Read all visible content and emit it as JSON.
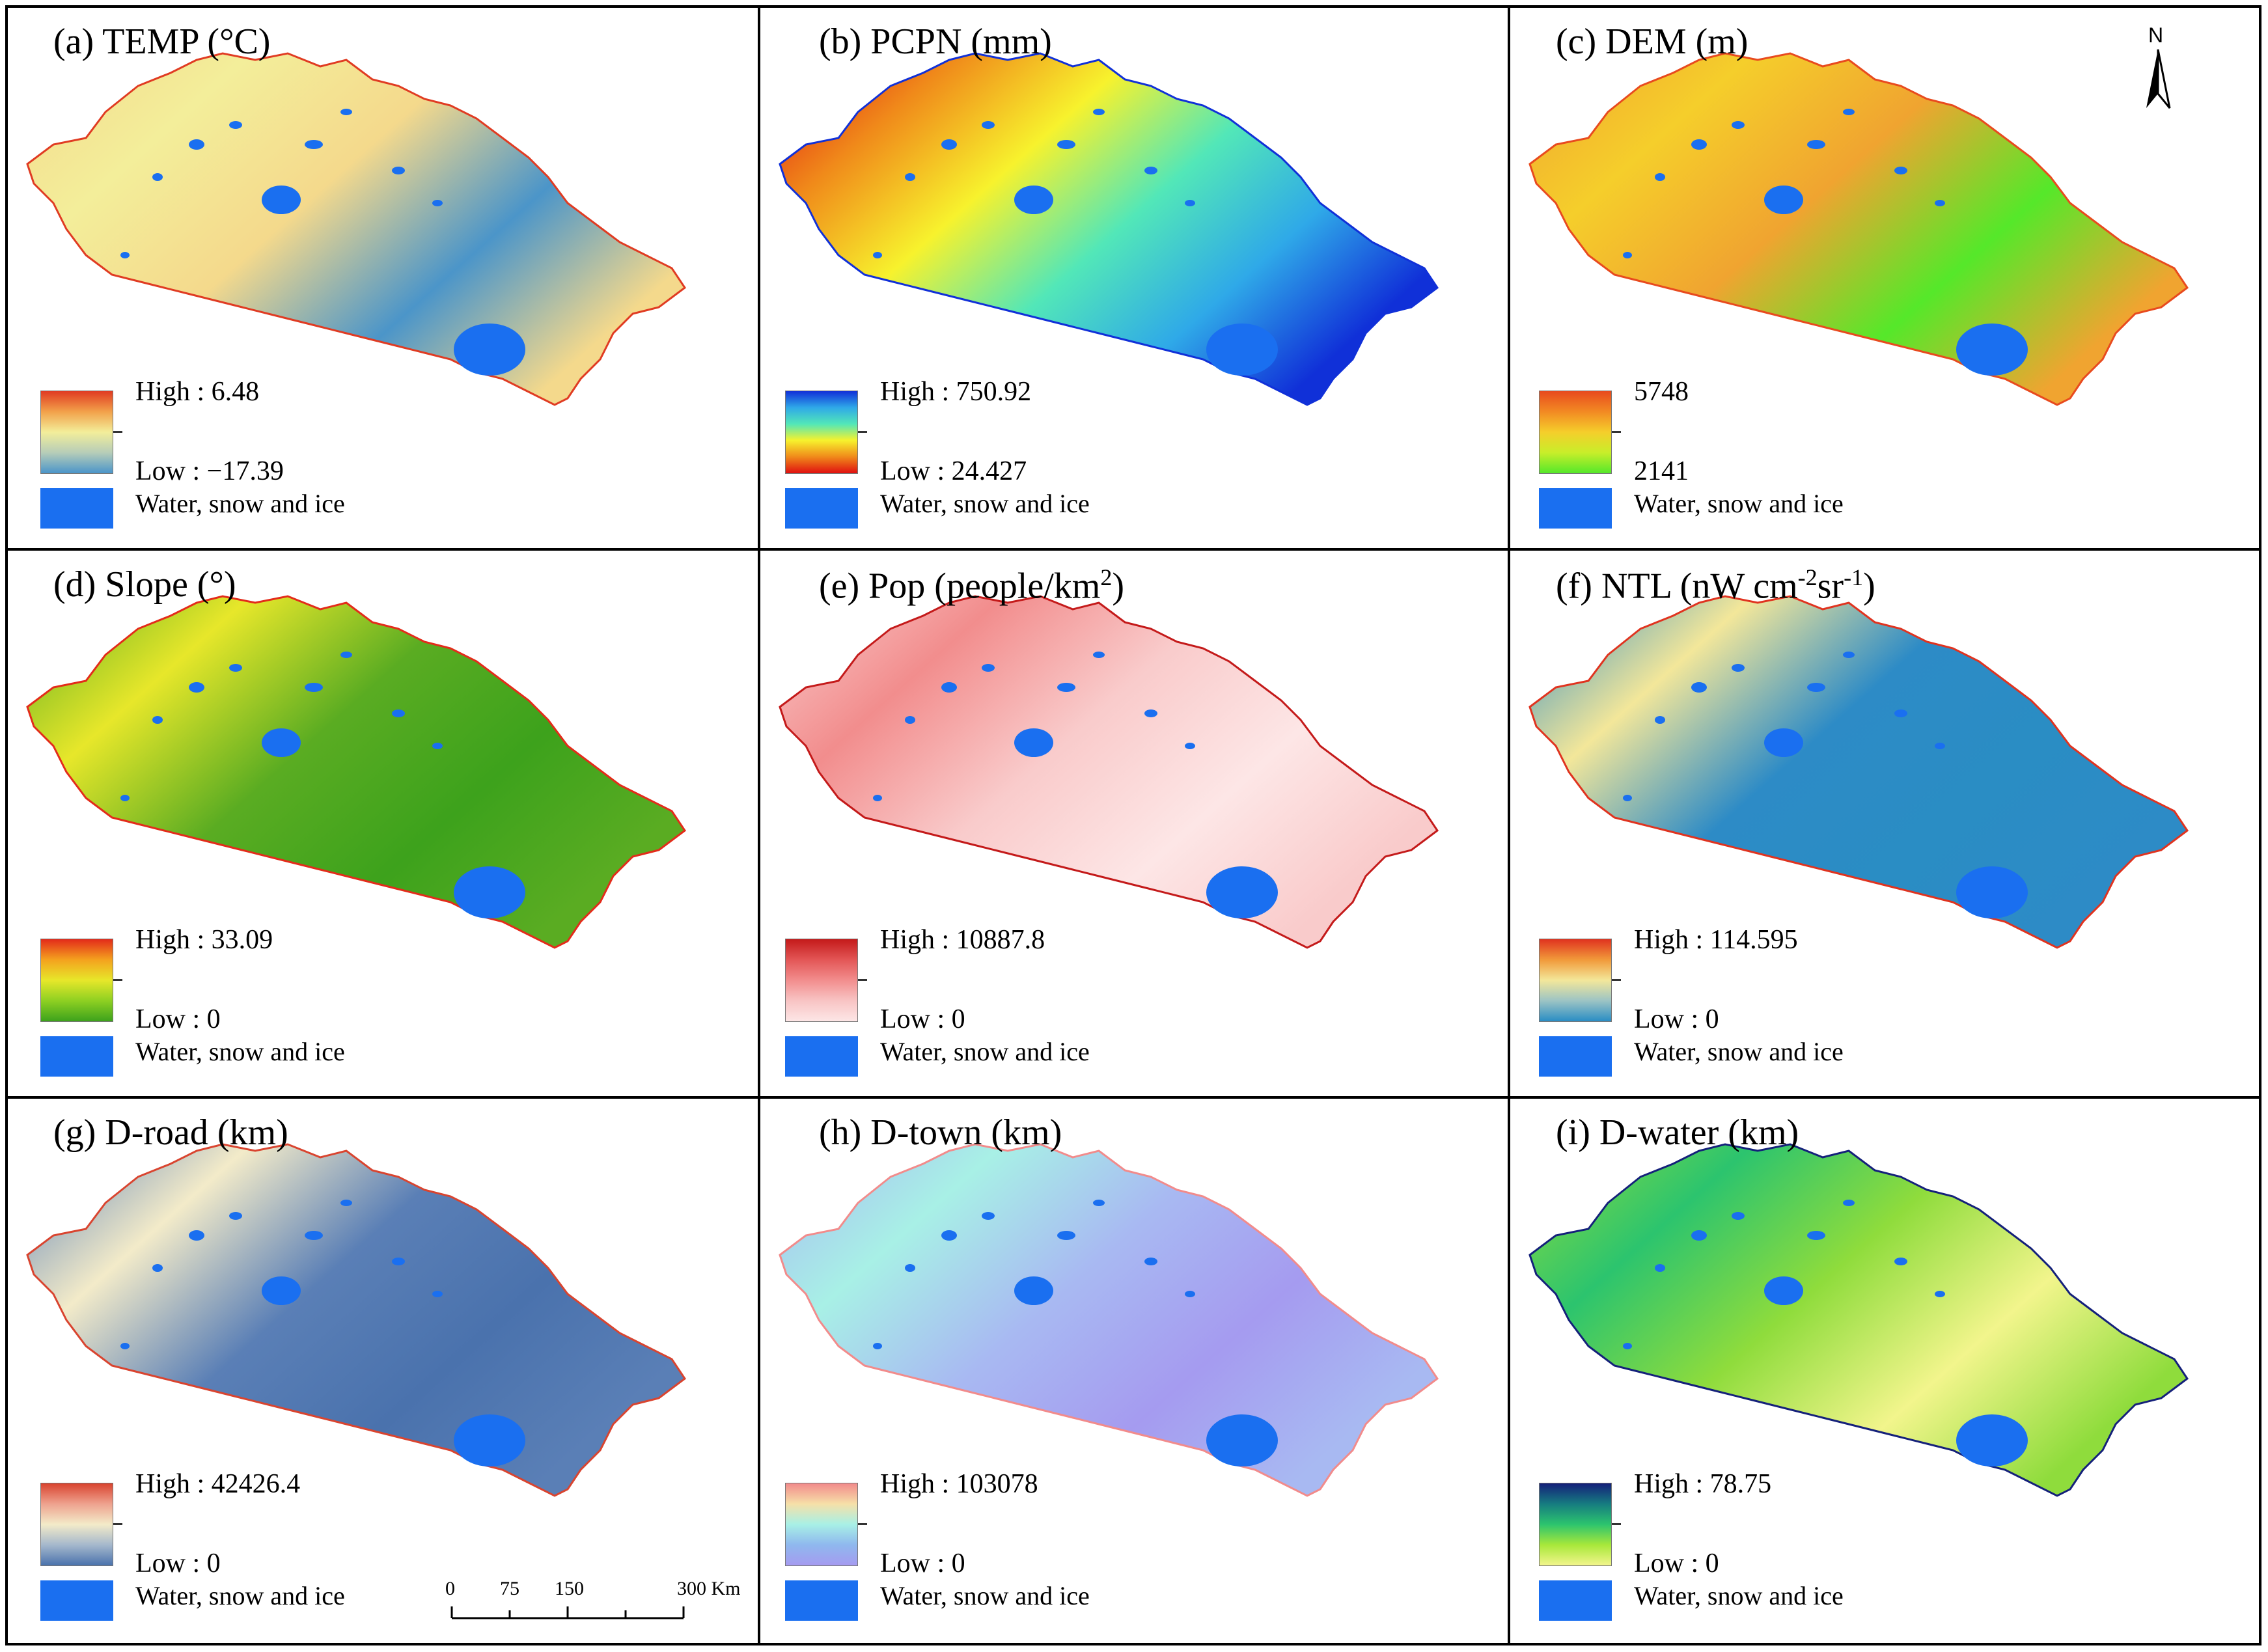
{
  "panels": [
    {
      "title": "(a) TEMP (°C)",
      "high": "High : 6.48",
      "low": "Low : −17.39",
      "water": "Water, snow and ice",
      "ramp": [
        "#e03b22",
        "#f2a14a",
        "#f3ee9a",
        "#b6cdb8",
        "#4b95c9"
      ],
      "fill": "#f4d98c"
    },
    {
      "title": "(b) PCPN (mm)",
      "high": "High : 750.92",
      "low": "Low : 24.427",
      "water": "Water, snow and ice",
      "ramp": [
        "#1030d8",
        "#2fa9e8",
        "#52e7b8",
        "#f7f22d",
        "#f08a1a",
        "#e01010"
      ],
      "fill": "#f5a623"
    },
    {
      "title": "(c) DEM (m)",
      "high": "5748",
      "low": "2141",
      "water": "Water, snow and ice",
      "ramp": [
        "#e84a1e",
        "#f28a23",
        "#f5ce2b",
        "#c8ee2a",
        "#55e82a"
      ],
      "fill": "#f0a430"
    },
    {
      "title": "(d) Slope (°)",
      "high": "High : 33.09",
      "low": "Low : 0",
      "water": "Water, snow and ice",
      "ramp": [
        "#e32b1a",
        "#f4a21e",
        "#e7e72a",
        "#8ed022",
        "#3da21c"
      ],
      "fill": "#5aac22"
    },
    {
      "title": "(e) Pop (people/km",
      "title_sup": "2",
      "title_end": ")",
      "high": "High : 10887.8",
      "low": "Low : 0",
      "water": "Water, snow and ice",
      "ramp": [
        "#c41a1a",
        "#e35656",
        "#f28d8d",
        "#f8c4c4",
        "#fde6e6"
      ],
      "fill": "#f9cbcb"
    },
    {
      "title": "(f) NTL (nW cm",
      "title_sup": "-2",
      "title_mid": "sr",
      "title_sup2": "-1",
      "title_end": ")",
      "high": "High : 114.595",
      "low": "Low : 0",
      "water": "Water, snow and ice",
      "ramp": [
        "#e0331f",
        "#f19a3a",
        "#f3e79a",
        "#9cc4c4",
        "#2a8dc4"
      ],
      "fill": "#2d8bc6"
    },
    {
      "title": "(g) D-road (km)",
      "high": "High : 42426.4",
      "low": "Low : 0",
      "water": "Water, snow and ice",
      "ramp": [
        "#d9442f",
        "#eea28e",
        "#f3ebc9",
        "#a5b8cc",
        "#4a72ad"
      ],
      "fill": "#5a7fb6"
    },
    {
      "title": "(h) D-town (km)",
      "high": "High : 103078",
      "low": "Low : 0",
      "water": "Water, snow and ice",
      "ramp": [
        "#f28b8b",
        "#f6e0a8",
        "#a8f0e6",
        "#8fb8ee",
        "#a59bf0"
      ],
      "fill": "#a8b9f2"
    },
    {
      "title": "(i) D-water (km)",
      "high": "High : 78.75",
      "low": "Low : 0",
      "water": "Water, snow and ice",
      "ramp": [
        "#14207a",
        "#167c80",
        "#2cc46e",
        "#a8e83a",
        "#f2f58c"
      ],
      "fill": "#8fdc3c"
    }
  ],
  "north_label": "N",
  "scale_bar": {
    "ticks": [
      "0",
      "75",
      "150",
      "300 Km"
    ]
  },
  "colors": {
    "water": "#1a6ff0",
    "frame": "#000000"
  }
}
